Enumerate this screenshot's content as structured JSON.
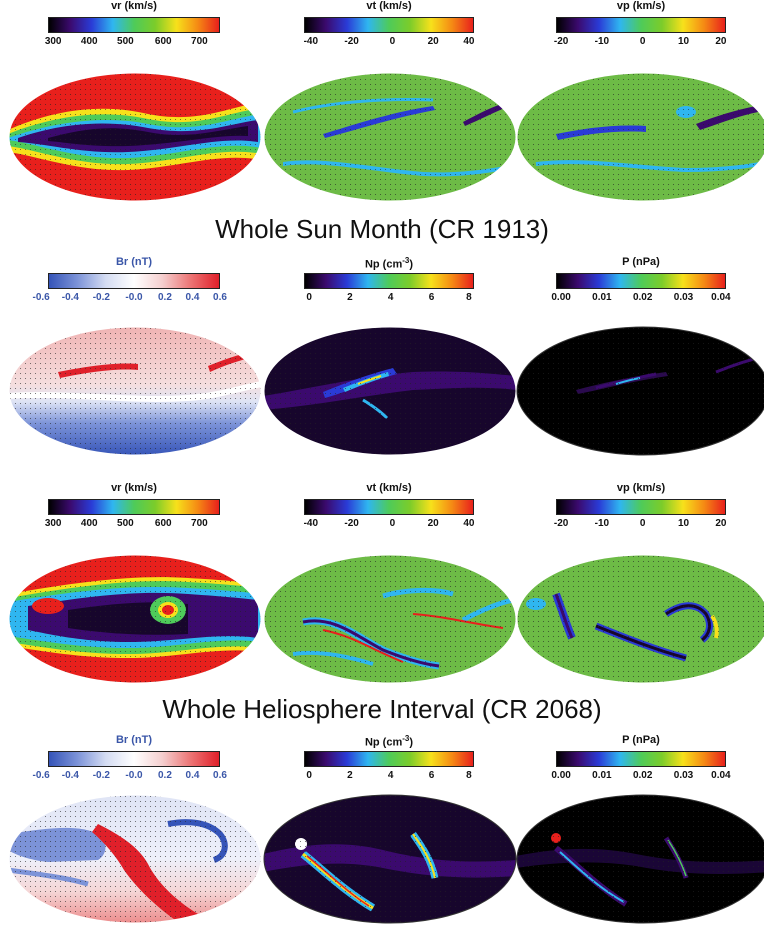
{
  "titles": {
    "cr1913": "Whole Sun Month (CR 1913)",
    "cr2068": "Whole Heliosphere Interval (CR 2068)"
  },
  "panel_set_1913": {
    "vr": {
      "label": "vr (km/s)",
      "ticks": [
        "300",
        "400",
        "500",
        "600",
        "700"
      ]
    },
    "vt": {
      "label": "vt (km/s)",
      "ticks": [
        "-40",
        "-20",
        "0",
        "20",
        "40"
      ]
    },
    "vp": {
      "label": "vp (km/s)",
      "ticks": [
        "-20",
        "-10",
        "0",
        "10",
        "20"
      ]
    },
    "br": {
      "label": "Br (nT)",
      "ticks": [
        "-0.6",
        "-0.4",
        "-0.2",
        "-0.0",
        "0.2",
        "0.4",
        "0.6"
      ]
    },
    "np": {
      "label": "Np (cm",
      "label_sup": "-3",
      "label_end": ")",
      "ticks": [
        "0",
        "2",
        "4",
        "6",
        "8"
      ]
    },
    "p": {
      "label": "P (nPa)",
      "ticks": [
        "0.00",
        "0.01",
        "0.02",
        "0.03",
        "0.04"
      ]
    }
  },
  "panel_set_2068": {
    "vr": {
      "label": "vr (km/s)",
      "ticks": [
        "300",
        "400",
        "500",
        "600",
        "700"
      ]
    },
    "vt": {
      "label": "vt (km/s)",
      "ticks": [
        "-40",
        "-20",
        "0",
        "20",
        "40"
      ]
    },
    "vp": {
      "label": "vp (km/s)",
      "ticks": [
        "-20",
        "-10",
        "0",
        "10",
        "20"
      ]
    },
    "br": {
      "label": "Br (nT)",
      "ticks": [
        "-0.6",
        "-0.4",
        "-0.2",
        "-0.0",
        "0.2",
        "0.4",
        "0.6"
      ]
    },
    "np": {
      "label": "Np (cm",
      "label_sup": "-3",
      "label_end": ")",
      "ticks": [
        "0",
        "2",
        "4",
        "6",
        "8"
      ]
    },
    "p": {
      "label": "P (nPa)",
      "ticks": [
        "0.00",
        "0.01",
        "0.02",
        "0.03",
        "0.04"
      ]
    }
  },
  "colors": {
    "rainbow": [
      "#000000",
      "#3b0a6e",
      "#2a3bd6",
      "#2fb6f0",
      "#4ecb5a",
      "#7ccc2a",
      "#f7e11b",
      "#f58a14",
      "#e8201c"
    ],
    "bwr": [
      "#3554b8",
      "#7c93d8",
      "#d4dcf2",
      "#ffffff",
      "#f5cfcf",
      "#ec7474",
      "#e0202a"
    ],
    "green_field": "#6dbb46",
    "red_field": "#e8201c",
    "dark_field": "#17062c",
    "heading_text": "#111111",
    "br_label": "#3a56a8"
  }
}
